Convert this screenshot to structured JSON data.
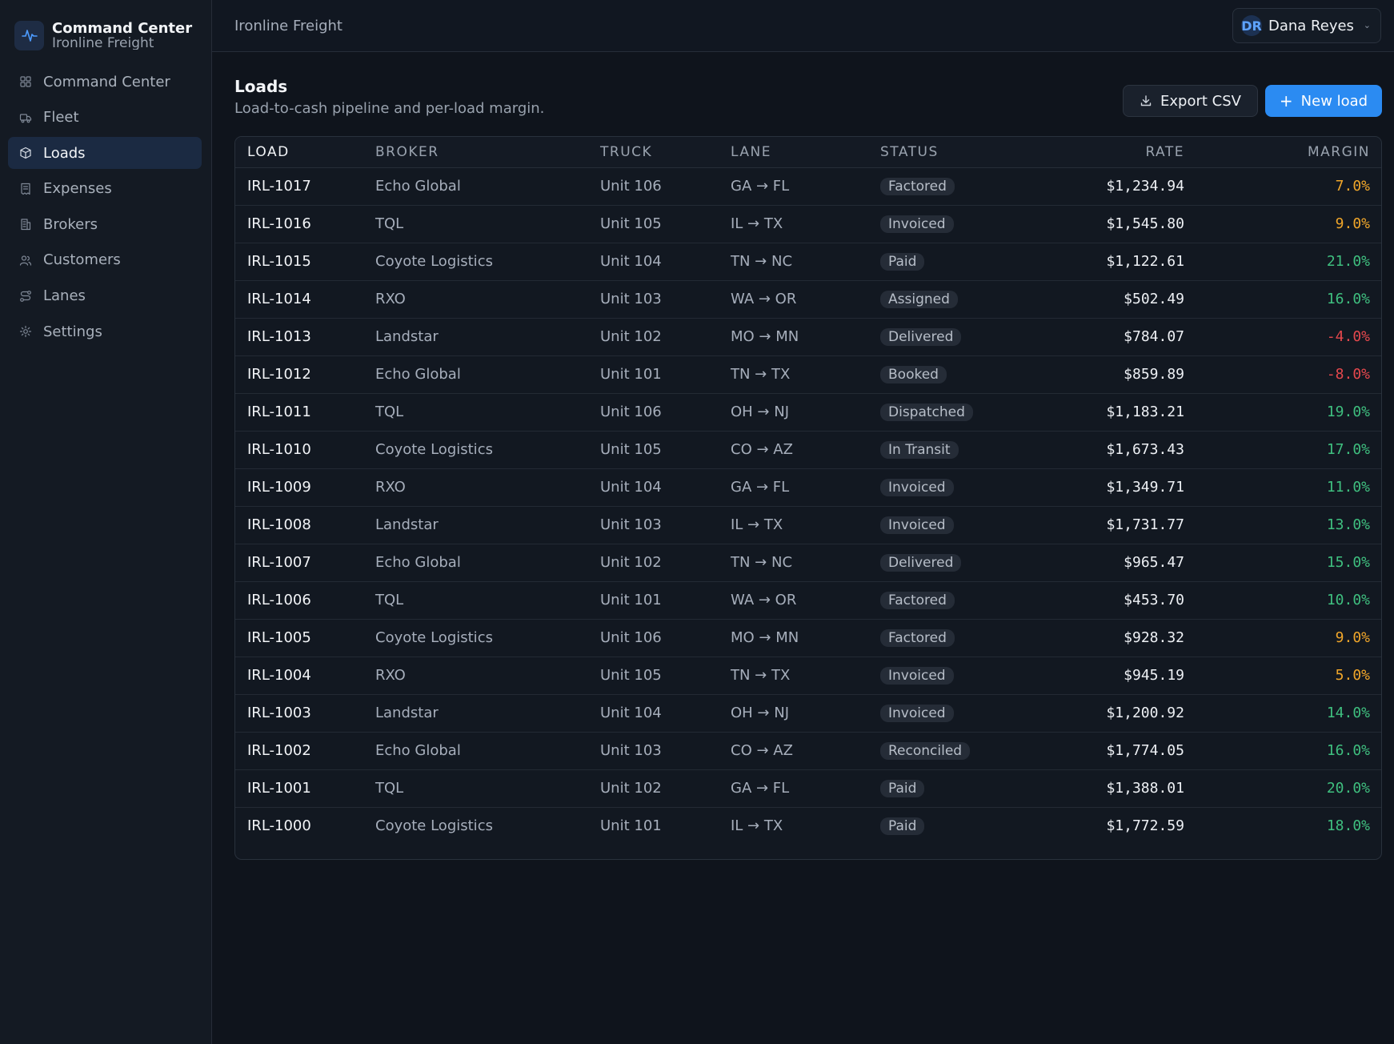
{
  "brand": {
    "title": "Command Center",
    "subtitle": "Ironline Freight"
  },
  "nav": [
    {
      "label": "Command Center",
      "icon": "dashboard-icon"
    },
    {
      "label": "Fleet",
      "icon": "truck-icon"
    },
    {
      "label": "Loads",
      "icon": "package-icon",
      "active": true
    },
    {
      "label": "Expenses",
      "icon": "receipt-icon"
    },
    {
      "label": "Brokers",
      "icon": "building-icon"
    },
    {
      "label": "Customers",
      "icon": "users-icon"
    },
    {
      "label": "Lanes",
      "icon": "route-icon"
    },
    {
      "label": "Settings",
      "icon": "gear-icon"
    }
  ],
  "topbar": {
    "title": "Ironline Freight",
    "user_initials": "DR",
    "user_name": "Dana Reyes"
  },
  "page": {
    "title": "Loads",
    "subtitle": "Load-to-cash pipeline and per-load margin."
  },
  "actions": {
    "export_label": "Export CSV",
    "new_label": "New load"
  },
  "colors": {
    "accent": "#2b8bf2",
    "positive": "#3fbf7f",
    "warning": "#f0a62a",
    "negative": "#e5484d"
  },
  "table": {
    "headers": [
      "LOAD",
      "BROKER",
      "TRUCK",
      "LANE",
      "STATUS",
      "RATE",
      "MARGIN"
    ],
    "rows": [
      {
        "load": "IRL-1017",
        "broker": "Echo Global",
        "truck": "Unit 106",
        "lane": "GA → FL",
        "status": "Factored",
        "rate": "$1,234.94",
        "margin": "7.0%",
        "tone": "mid"
      },
      {
        "load": "IRL-1016",
        "broker": "TQL",
        "truck": "Unit 105",
        "lane": "IL → TX",
        "status": "Invoiced",
        "rate": "$1,545.80",
        "margin": "9.0%",
        "tone": "mid"
      },
      {
        "load": "IRL-1015",
        "broker": "Coyote Logistics",
        "truck": "Unit 104",
        "lane": "TN → NC",
        "status": "Paid",
        "rate": "$1,122.61",
        "margin": "21.0%",
        "tone": "pos"
      },
      {
        "load": "IRL-1014",
        "broker": "RXO",
        "truck": "Unit 103",
        "lane": "WA → OR",
        "status": "Assigned",
        "rate": "$502.49",
        "margin": "16.0%",
        "tone": "pos"
      },
      {
        "load": "IRL-1013",
        "broker": "Landstar",
        "truck": "Unit 102",
        "lane": "MO → MN",
        "status": "Delivered",
        "rate": "$784.07",
        "margin": "-4.0%",
        "tone": "neg"
      },
      {
        "load": "IRL-1012",
        "broker": "Echo Global",
        "truck": "Unit 101",
        "lane": "TN → TX",
        "status": "Booked",
        "rate": "$859.89",
        "margin": "-8.0%",
        "tone": "neg"
      },
      {
        "load": "IRL-1011",
        "broker": "TQL",
        "truck": "Unit 106",
        "lane": "OH → NJ",
        "status": "Dispatched",
        "rate": "$1,183.21",
        "margin": "19.0%",
        "tone": "pos"
      },
      {
        "load": "IRL-1010",
        "broker": "Coyote Logistics",
        "truck": "Unit 105",
        "lane": "CO → AZ",
        "status": "In Transit",
        "rate": "$1,673.43",
        "margin": "17.0%",
        "tone": "pos"
      },
      {
        "load": "IRL-1009",
        "broker": "RXO",
        "truck": "Unit 104",
        "lane": "GA → FL",
        "status": "Invoiced",
        "rate": "$1,349.71",
        "margin": "11.0%",
        "tone": "pos"
      },
      {
        "load": "IRL-1008",
        "broker": "Landstar",
        "truck": "Unit 103",
        "lane": "IL → TX",
        "status": "Invoiced",
        "rate": "$1,731.77",
        "margin": "13.0%",
        "tone": "pos"
      },
      {
        "load": "IRL-1007",
        "broker": "Echo Global",
        "truck": "Unit 102",
        "lane": "TN → NC",
        "status": "Delivered",
        "rate": "$965.47",
        "margin": "15.0%",
        "tone": "pos"
      },
      {
        "load": "IRL-1006",
        "broker": "TQL",
        "truck": "Unit 101",
        "lane": "WA → OR",
        "status": "Factored",
        "rate": "$453.70",
        "margin": "10.0%",
        "tone": "pos"
      },
      {
        "load": "IRL-1005",
        "broker": "Coyote Logistics",
        "truck": "Unit 106",
        "lane": "MO → MN",
        "status": "Factored",
        "rate": "$928.32",
        "margin": "9.0%",
        "tone": "mid"
      },
      {
        "load": "IRL-1004",
        "broker": "RXO",
        "truck": "Unit 105",
        "lane": "TN → TX",
        "status": "Invoiced",
        "rate": "$945.19",
        "margin": "5.0%",
        "tone": "mid"
      },
      {
        "load": "IRL-1003",
        "broker": "Landstar",
        "truck": "Unit 104",
        "lane": "OH → NJ",
        "status": "Invoiced",
        "rate": "$1,200.92",
        "margin": "14.0%",
        "tone": "pos"
      },
      {
        "load": "IRL-1002",
        "broker": "Echo Global",
        "truck": "Unit 103",
        "lane": "CO → AZ",
        "status": "Reconciled",
        "rate": "$1,774.05",
        "margin": "16.0%",
        "tone": "pos"
      },
      {
        "load": "IRL-1001",
        "broker": "TQL",
        "truck": "Unit 102",
        "lane": "GA → FL",
        "status": "Paid",
        "rate": "$1,388.01",
        "margin": "20.0%",
        "tone": "pos"
      },
      {
        "load": "IRL-1000",
        "broker": "Coyote Logistics",
        "truck": "Unit 101",
        "lane": "IL → TX",
        "status": "Paid",
        "rate": "$1,772.59",
        "margin": "18.0%",
        "tone": "pos"
      }
    ]
  }
}
